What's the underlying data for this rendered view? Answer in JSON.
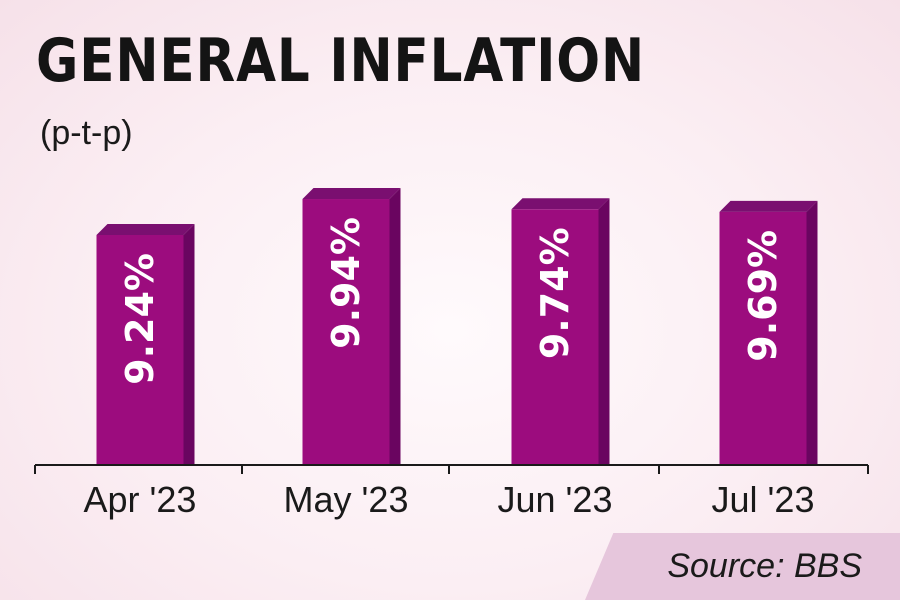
{
  "title": "GENERAL INFLATION",
  "subtitle": "(p-t-p)",
  "source": "Source: BBS",
  "colors": {
    "bar_front": "#9c0c7e",
    "bar_side": "#6a0560",
    "bar_top": "#7a0f70",
    "axis": "#1a1a1a",
    "label_text": "#ffffff"
  },
  "chart_data": {
    "type": "bar",
    "categories": [
      "Apr '23",
      "May '23",
      "Jun '23",
      "Jul '23"
    ],
    "values": [
      9.24,
      9.94,
      9.74,
      9.69
    ],
    "data_labels": [
      "9.24%",
      "9.94%",
      "9.74%",
      "9.69%"
    ],
    "title": "GENERAL INFLATION",
    "subtitle": "(p-t-p)",
    "xlabel": "",
    "ylabel": "",
    "grid": false,
    "legend": "none"
  }
}
